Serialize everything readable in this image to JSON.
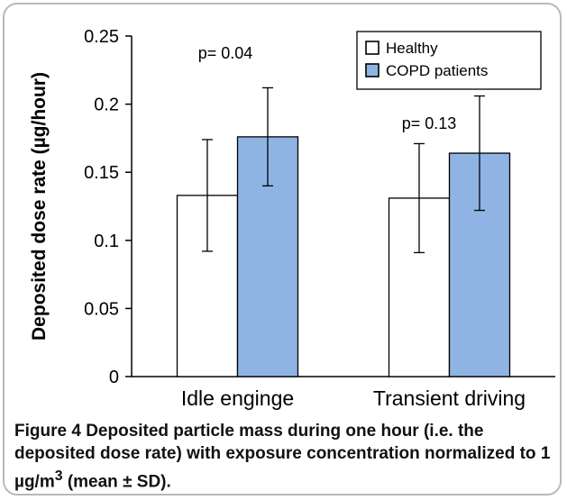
{
  "chart_data": {
    "type": "bar",
    "ylabel": "Deposited dose rate (µg/hour)",
    "xlabel": "",
    "ylim": [
      0,
      0.25
    ],
    "yticks": [
      0,
      0.05,
      0.1,
      0.15,
      0.2,
      0.25
    ],
    "ytick_labels": [
      "0",
      "0.05",
      "0.1",
      "0.15",
      "0.2",
      "0.25"
    ],
    "categories": [
      "Idle enginge",
      "Transient driving"
    ],
    "series": [
      {
        "name": "Healthy",
        "color": "#ffffff",
        "values": [
          0.133,
          0.131
        ],
        "error": [
          0.041,
          0.04
        ]
      },
      {
        "name": "COPD patients",
        "color": "#8fb4e3",
        "values": [
          0.176,
          0.164
        ],
        "error": [
          0.036,
          0.042
        ]
      }
    ],
    "annotations": [
      "p= 0.04",
      "p= 0.13"
    ],
    "legend": "top-right",
    "grid": false
  },
  "caption": {
    "label": "Figure 4",
    "text_before_sup": "Deposited particle mass during one hour (i.e. the deposited dose rate) with exposure concentration normalized to 1 µg/m",
    "superscript": "3",
    "text_after_sup": " (mean ± SD)."
  }
}
